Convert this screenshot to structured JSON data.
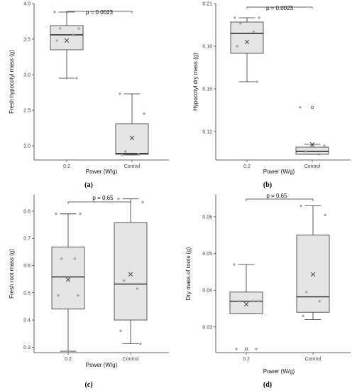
{
  "chart_data": [
    {
      "type": "box",
      "panel_label": "(a)",
      "xlabel": "Power (W/g)",
      "ylabel": "Fresh hypocotyl mass (g)",
      "categories": [
        "0.2",
        "Control"
      ],
      "ylim": [
        1.8,
        4.0
      ],
      "yticks": [
        2.0,
        2.5,
        3.0,
        3.5,
        4.0
      ],
      "ytick_labels": [
        "2.0",
        "2.5",
        "3.0",
        "3.5",
        "4.0"
      ],
      "p_value_label": "p = 0.0023",
      "grid": false,
      "boxes": [
        {
          "min": 2.95,
          "q1": 3.35,
          "median": 3.56,
          "q3": 3.69,
          "max": 3.88,
          "mean": 3.48,
          "points": [
            3.88,
            3.65,
            3.65,
            3.56,
            3.48,
            2.95,
            2.95
          ],
          "outliers": []
        },
        {
          "min": 1.87,
          "q1": 1.88,
          "median": 1.89,
          "q3": 2.31,
          "max": 2.73,
          "mean": 2.11,
          "points": [
            2.73,
            2.45,
            1.92,
            1.88,
            1.87
          ],
          "outliers": []
        }
      ]
    },
    {
      "type": "box",
      "panel_label": "(b)",
      "xlabel": "Power (W/g)",
      "ylabel": "Hypocotyl dry mass (g)",
      "categories": [
        "0.2",
        "Control"
      ],
      "ylim": [
        0.1,
        0.21
      ],
      "yticks": [
        0.12,
        0.15,
        0.18,
        0.21
      ],
      "ytick_labels": [
        "0.12",
        "0.15",
        "0.18",
        "0.21"
      ],
      "p_value_label": "p = 0.0023",
      "grid": false,
      "boxes": [
        {
          "min": 0.155,
          "q1": 0.175,
          "median": 0.189,
          "q3": 0.197,
          "max": 0.2,
          "mean": 0.183,
          "points": [
            0.2,
            0.2,
            0.196,
            0.19,
            0.18,
            0.155
          ],
          "outliers": []
        },
        {
          "min": 0.104,
          "q1": 0.104,
          "median": 0.106,
          "q3": 0.109,
          "max": 0.111,
          "mean": 0.111,
          "points": [
            0.137,
            0.11,
            0.106,
            0.104
          ],
          "outliers": [
            0.137
          ]
        }
      ]
    },
    {
      "type": "box",
      "panel_label": "(c)",
      "xlabel": "Power (W/g)",
      "ylabel": "Fresh root mass (g)",
      "categories": [
        "0.2",
        "Control"
      ],
      "ylim": [
        0.28,
        0.86
      ],
      "yticks": [
        0.3,
        0.4,
        0.5,
        0.6,
        0.7,
        0.8
      ],
      "ytick_labels": [
        "0.3",
        "0.4",
        "0.5",
        "0.6",
        "0.7",
        "0.8"
      ],
      "p_value_label": "p = 0.65",
      "grid": false,
      "boxes": [
        {
          "min": 0.285,
          "q1": 0.44,
          "median": 0.558,
          "q3": 0.668,
          "max": 0.79,
          "mean": 0.548,
          "points": [
            0.79,
            0.79,
            0.625,
            0.625,
            0.49,
            0.49,
            0.285
          ],
          "outliers": []
        },
        {
          "min": 0.313,
          "q1": 0.4,
          "median": 0.532,
          "q3": 0.758,
          "max": 0.845,
          "mean": 0.568,
          "points": [
            0.845,
            0.833,
            0.545,
            0.515,
            0.36,
            0.313
          ],
          "outliers": []
        }
      ]
    },
    {
      "type": "box",
      "panel_label": "(d)",
      "xlabel": "Power (W/g)",
      "ylabel": "Dry mass of roots (g)",
      "categories": [
        "0.2",
        "Control"
      ],
      "ylim": [
        0.023,
        0.066
      ],
      "yticks": [
        0.03,
        0.04,
        0.05,
        0.06
      ],
      "ytick_labels": [
        "0.03",
        "0.04",
        "0.05",
        "0.06"
      ],
      "p_value_label": "p = 0.65",
      "grid": false,
      "boxes": [
        {
          "min": 0.0336,
          "q1": 0.0336,
          "median": 0.037,
          "q3": 0.0395,
          "max": 0.047,
          "mean": 0.0362,
          "points": [
            0.047,
            0.037,
            0.037,
            0.037,
            0.024,
            0.024
          ],
          "outliers": [
            0.024
          ]
        },
        {
          "min": 0.032,
          "q1": 0.034,
          "median": 0.0382,
          "q3": 0.055,
          "max": 0.063,
          "mean": 0.0443,
          "points": [
            0.063,
            0.0605,
            0.0395,
            0.037,
            0.033
          ],
          "outliers": []
        }
      ]
    }
  ],
  "colors": {
    "box_fill": "#e5e5e5",
    "box_stroke": "#333333",
    "point": "#9a9a9a",
    "mean_marker": "#333333"
  }
}
